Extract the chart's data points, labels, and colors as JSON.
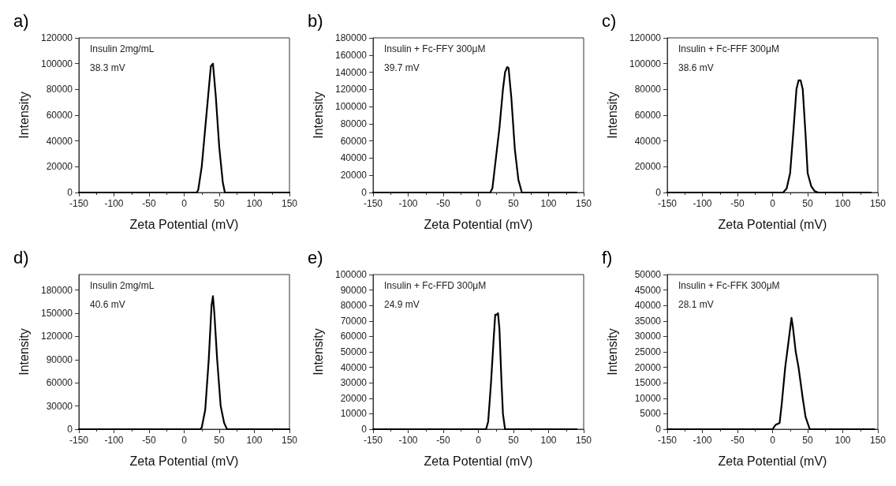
{
  "chart_data": [
    {
      "type": "line",
      "title": "a)",
      "xlabel": "Zeta Potential (mV)",
      "ylabel": "Intensity",
      "annotations": [
        "Insulin 2mg/mL",
        "38.3 mV"
      ],
      "xlim": [
        -150,
        150
      ],
      "xticks": [
        -150,
        -100,
        -50,
        0,
        50,
        100,
        150
      ],
      "ylim": [
        0,
        120000
      ],
      "yticks": [
        0,
        20000,
        40000,
        60000,
        80000,
        100000,
        120000
      ],
      "grid": false,
      "marker": "none",
      "line_style": "solid",
      "series": [
        {
          "color": "#000000",
          "x": [
            -150,
            18,
            20,
            25,
            30,
            35,
            38,
            41,
            45,
            50,
            55,
            58,
            150
          ],
          "values": [
            0,
            0,
            2000,
            20000,
            50000,
            80000,
            98000,
            100000,
            75000,
            35000,
            8000,
            0,
            0
          ]
        }
      ]
    },
    {
      "type": "line",
      "title": "b)",
      "xlabel": "Zeta Potential (mV)",
      "ylabel": "Intensity",
      "annotations": [
        "Insulin + Fc-FFY 300μM",
        "39.7 mV"
      ],
      "xlim": [
        -150,
        150
      ],
      "xticks": [
        -150,
        -100,
        -50,
        0,
        50,
        100,
        150
      ],
      "ylim": [
        0,
        180000
      ],
      "yticks": [
        0,
        20000,
        40000,
        60000,
        80000,
        100000,
        120000,
        140000,
        160000,
        180000
      ],
      "grid": false,
      "marker": "none",
      "line_style": "solid",
      "series": [
        {
          "color": "#000000",
          "x": [
            -150,
            17,
            20,
            25,
            30,
            35,
            38,
            41,
            43,
            47,
            52,
            57,
            62,
            140
          ],
          "values": [
            0,
            0,
            5000,
            40000,
            75000,
            120000,
            140000,
            146000,
            145000,
            110000,
            50000,
            15000,
            0,
            0
          ]
        }
      ]
    },
    {
      "type": "line",
      "title": "c)",
      "xlabel": "Zeta Potential (mV)",
      "ylabel": "Intensity",
      "annotations": [
        "Insulin + Fc-FFF 300μM",
        "38.6 mV"
      ],
      "xlim": [
        -150,
        150
      ],
      "xticks": [
        -150,
        -100,
        -50,
        0,
        50,
        100,
        150
      ],
      "ylim": [
        0,
        120000
      ],
      "yticks": [
        0,
        20000,
        40000,
        60000,
        80000,
        100000,
        120000
      ],
      "grid": false,
      "marker": "none",
      "line_style": "solid",
      "series": [
        {
          "color": "#000000",
          "x": [
            -150,
            15,
            20,
            25,
            30,
            34,
            37,
            40,
            43,
            47,
            50,
            55,
            60,
            65,
            140
          ],
          "values": [
            0,
            0,
            3000,
            15000,
            50000,
            80000,
            87000,
            87000,
            80000,
            45000,
            15000,
            5000,
            1000,
            0,
            0
          ]
        }
      ]
    },
    {
      "type": "line",
      "title": "d)",
      "xlabel": "Zeta Potential (mV)",
      "ylabel": "Intensity",
      "annotations": [
        "Insulin 2mg/mL",
        "40.6 mV"
      ],
      "xlim": [
        -150,
        150
      ],
      "xticks": [
        -150,
        -100,
        -50,
        0,
        50,
        100,
        150
      ],
      "ylim": [
        0,
        200000
      ],
      "yticks": [
        0,
        30000,
        60000,
        90000,
        120000,
        150000,
        180000
      ],
      "grid": false,
      "marker": "none",
      "line_style": "solid",
      "series": [
        {
          "color": "#000000",
          "x": [
            -150,
            23,
            25,
            30,
            35,
            39,
            41,
            43,
            47,
            52,
            57,
            61,
            150
          ],
          "values": [
            0,
            0,
            2000,
            25000,
            90000,
            160000,
            172000,
            150000,
            90000,
            30000,
            8000,
            0,
            0
          ]
        }
      ]
    },
    {
      "type": "line",
      "title": "e)",
      "xlabel": "Zeta Potential (mV)",
      "ylabel": "Intensity",
      "annotations": [
        "Insulin + Fc-FFD 300μM",
        "24.9 mV"
      ],
      "xlim": [
        -150,
        150
      ],
      "xticks": [
        -150,
        -100,
        -50,
        0,
        50,
        100,
        150
      ],
      "ylim": [
        0,
        100000
      ],
      "yticks": [
        0,
        10000,
        20000,
        30000,
        40000,
        50000,
        60000,
        70000,
        80000,
        90000,
        100000
      ],
      "grid": false,
      "marker": "none",
      "line_style": "solid",
      "series": [
        {
          "color": "#000000",
          "x": [
            -150,
            11,
            14,
            18,
            22,
            24,
            26,
            28,
            30,
            33,
            35,
            38,
            140
          ],
          "values": [
            0,
            0,
            5000,
            30000,
            60000,
            74000,
            74000,
            75000,
            65000,
            30000,
            10000,
            0,
            0
          ]
        }
      ]
    },
    {
      "type": "line",
      "title": "f)",
      "xlabel": "Zeta Potential (mV)",
      "ylabel": "Intensity",
      "annotations": [
        "Insulin + Fc-FFK 300μM",
        "28.1 mV"
      ],
      "xlim": [
        -150,
        150
      ],
      "xticks": [
        -150,
        -100,
        -50,
        0,
        50,
        100,
        150
      ],
      "ylim": [
        0,
        50000
      ],
      "yticks": [
        0,
        5000,
        10000,
        15000,
        20000,
        25000,
        30000,
        35000,
        40000,
        45000,
        50000
      ],
      "grid": false,
      "marker": "none",
      "line_style": "solid",
      "series": [
        {
          "color": "#000000",
          "x": [
            -150,
            0,
            3,
            5,
            10,
            13,
            18,
            22,
            27,
            29,
            33,
            37,
            43,
            47,
            53,
            145
          ],
          "values": [
            0,
            0,
            1000,
            1500,
            2000,
            8000,
            20000,
            27000,
            36000,
            33000,
            25000,
            20000,
            10000,
            4000,
            0,
            0
          ]
        }
      ]
    }
  ]
}
